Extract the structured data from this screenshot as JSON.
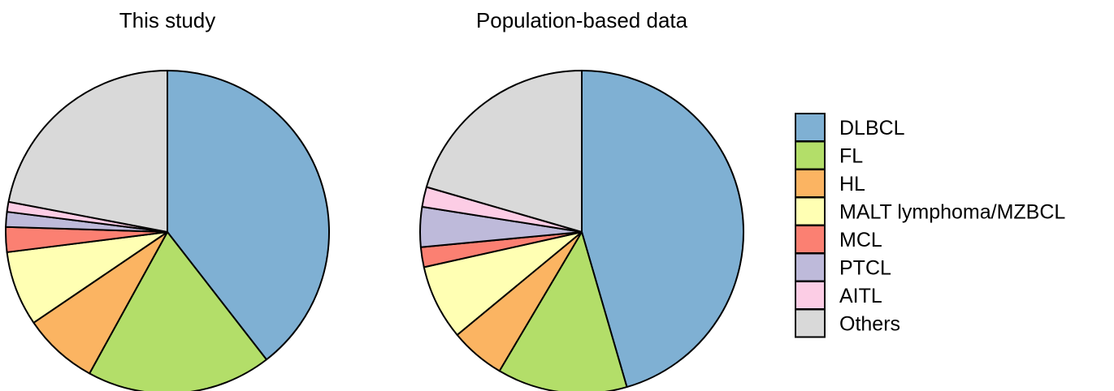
{
  "chart_data": [
    {
      "type": "pie",
      "title": "This study",
      "start": "12 o'clock",
      "direction": "clockwise",
      "slices": [
        {
          "label": "DLBCL",
          "value": 39.5
        },
        {
          "label": "FL",
          "value": 18.5
        },
        {
          "label": "HL",
          "value": 7.5
        },
        {
          "label": "MALT lymphoma/MZBCL",
          "value": 7.5
        },
        {
          "label": "MCL",
          "value": 2.5
        },
        {
          "label": "PTCL",
          "value": 1.5
        },
        {
          "label": "AITL",
          "value": 1.0
        },
        {
          "label": "Others",
          "value": 22.0
        }
      ]
    },
    {
      "type": "pie",
      "title": "Population-based data",
      "start": "12 o'clock",
      "direction": "clockwise",
      "slices": [
        {
          "label": "DLBCL",
          "value": 45.5
        },
        {
          "label": "FL",
          "value": 13.0
        },
        {
          "label": "HL",
          "value": 5.5
        },
        {
          "label": "MALT lymphoma/MZBCL",
          "value": 7.5
        },
        {
          "label": "MCL",
          "value": 2.0
        },
        {
          "label": "PTCL",
          "value": 4.0
        },
        {
          "label": "AITL",
          "value": 2.0
        },
        {
          "label": "Others",
          "value": 20.5
        }
      ]
    }
  ],
  "legend": {
    "placement": "right",
    "items": [
      {
        "label": "DLBCL",
        "color": "#7fb0d3"
      },
      {
        "label": "FL",
        "color": "#b3de69"
      },
      {
        "label": "HL",
        "color": "#fbb462"
      },
      {
        "label": "MALT lymphoma/MZBCL",
        "color": "#ffffb3"
      },
      {
        "label": "MCL",
        "color": "#fb8072"
      },
      {
        "label": "PTCL",
        "color": "#bebada"
      },
      {
        "label": "AITL",
        "color": "#fccde5"
      },
      {
        "label": "Others",
        "color": "#d9d9d9"
      }
    ]
  }
}
